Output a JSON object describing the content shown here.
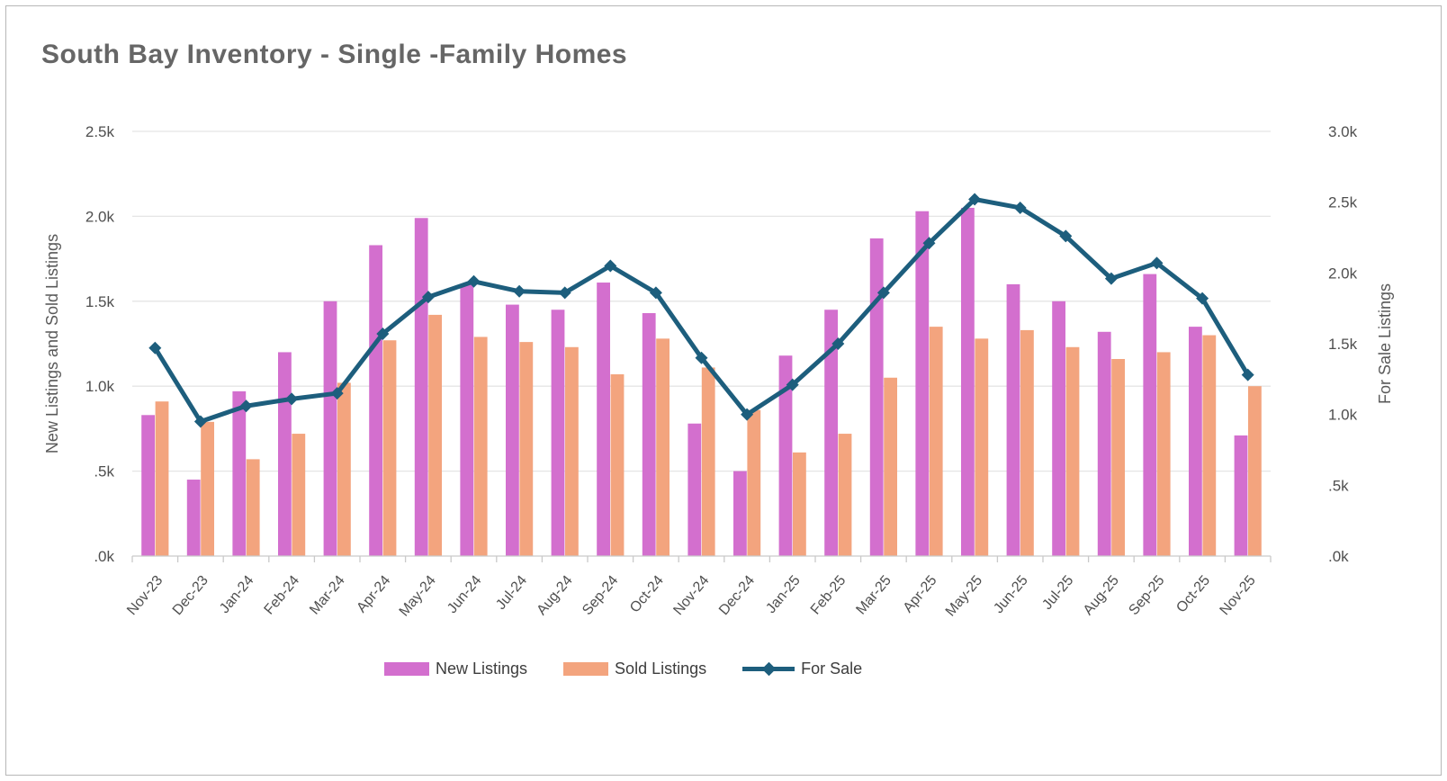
{
  "title": "South Bay Inventory  - Single -Family Homes",
  "chart_data": {
    "type": "combo",
    "title": "South Bay Inventory  - Single -Family Homes",
    "categories": [
      "Nov-23",
      "Dec-23",
      "Jan-24",
      "Feb-24",
      "Mar-24",
      "Apr-24",
      "May-24",
      "Jun-24",
      "Jul-24",
      "Aug-24",
      "Sep-24",
      "Oct-24",
      "Nov-24",
      "Dec-24",
      "Jan-25",
      "Feb-25",
      "Mar-25",
      "Apr-25",
      "May-25",
      "Jun-25",
      "Jul-25",
      "Aug-25",
      "Sep-25",
      "Oct-25",
      "Nov-25"
    ],
    "series": [
      {
        "name": "New Listings",
        "type": "bar",
        "axis": "left",
        "color": "#d36fce",
        "values": [
          830,
          450,
          970,
          1200,
          1500,
          1830,
          1990,
          1600,
          1480,
          1450,
          1610,
          1430,
          780,
          500,
          1180,
          1450,
          1870,
          2030,
          2050,
          1600,
          1500,
          1320,
          1660,
          1350,
          710
        ]
      },
      {
        "name": "Sold Listings",
        "type": "bar",
        "axis": "left",
        "color": "#f3a47e",
        "values": [
          910,
          790,
          570,
          720,
          1020,
          1270,
          1420,
          1290,
          1260,
          1230,
          1070,
          1280,
          1110,
          860,
          610,
          720,
          1050,
          1350,
          1280,
          1330,
          1230,
          1160,
          1200,
          1300,
          1000
        ]
      },
      {
        "name": "For Sale",
        "type": "line",
        "axis": "right",
        "color": "#1d5e7d",
        "values": [
          1470,
          950,
          1060,
          1110,
          1150,
          1570,
          1830,
          1940,
          1870,
          1860,
          2050,
          1860,
          1400,
          1000,
          1210,
          1500,
          1860,
          2210,
          2520,
          2460,
          2260,
          1960,
          2070,
          1820,
          1280
        ]
      }
    ],
    "y_axis_left": {
      "title": "New Listings and Sold Listings",
      "min": 0,
      "max": 2500,
      "tick_values": [
        0,
        500,
        1000,
        1500,
        2000,
        2500
      ],
      "tick_labels": [
        ".0k",
        ".5k",
        "1.0k",
        "1.5k",
        "2.0k",
        "2.5k"
      ]
    },
    "y_axis_right": {
      "title": "For Sale Listings",
      "min": 0,
      "max": 3000,
      "tick_values": [
        0,
        500,
        1000,
        1500,
        2000,
        2500,
        3000
      ],
      "tick_labels": [
        ".0k",
        ".5k",
        "1.0k",
        "1.5k",
        "2.0k",
        "2.5k",
        "3.0k"
      ]
    },
    "grid": "horizontal",
    "legend_position": "bottom",
    "colors": {
      "gridline": "#e5e5e5",
      "axis_line": "#c9c9c9",
      "tick_text": "#4f4f4f",
      "title_text": "#666666"
    }
  }
}
